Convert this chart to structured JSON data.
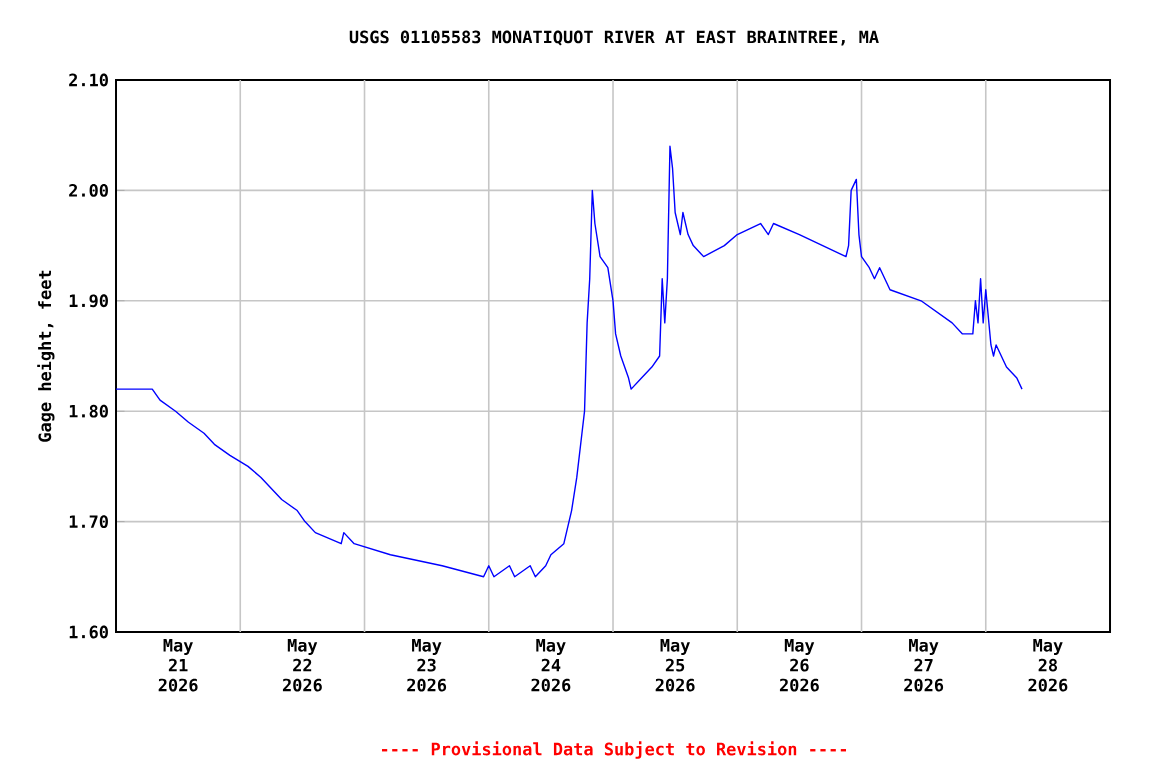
{
  "chart_data": {
    "type": "line",
    "title": "USGS 01105583 MONATIQUOT RIVER AT EAST BRAINTREE, MA",
    "ylabel": "Gage height, feet",
    "annotations": [
      "---- Provisional Data Subject to Revision ----"
    ],
    "x": [
      "2026-05-21T00:00",
      "2026-05-21T07:00",
      "2026-05-21T08:30",
      "2026-05-21T11:30",
      "2026-05-21T14:00",
      "2026-05-21T17:00",
      "2026-05-21T19:00",
      "2026-05-21T22:00",
      "2026-05-22T01:30",
      "2026-05-22T04:00",
      "2026-05-22T06:00",
      "2026-05-22T08:00",
      "2026-05-22T11:00",
      "2026-05-22T12:30",
      "2026-05-22T14:30",
      "2026-05-22T19:30",
      "2026-05-22T20:00",
      "2026-05-22T22:00",
      "2026-05-23T05:00",
      "2026-05-23T15:00",
      "2026-05-23T23:00",
      "2026-05-24T00:00",
      "2026-05-24T01:00",
      "2026-05-24T04:00",
      "2026-05-24T05:00",
      "2026-05-24T08:00",
      "2026-05-24T09:00",
      "2026-05-24T11:00",
      "2026-05-24T12:00",
      "2026-05-24T14:30",
      "2026-05-24T16:00",
      "2026-05-24T17:00",
      "2026-05-24T18:00",
      "2026-05-24T18:30",
      "2026-05-24T19:00",
      "2026-05-24T19:30",
      "2026-05-24T20:00",
      "2026-05-24T20:30",
      "2026-05-24T21:30",
      "2026-05-24T23:00",
      "2026-05-25T00:00",
      "2026-05-25T00:30",
      "2026-05-25T01:30",
      "2026-05-25T03:00",
      "2026-05-25T03:30",
      "2026-05-25T05:30",
      "2026-05-25T07:30",
      "2026-05-25T09:00",
      "2026-05-25T09:30",
      "2026-05-25T10:00",
      "2026-05-25T10:30",
      "2026-05-25T11:00",
      "2026-05-25T11:30",
      "2026-05-25T12:00",
      "2026-05-25T13:00",
      "2026-05-25T13:30",
      "2026-05-25T14:30",
      "2026-05-25T15:30",
      "2026-05-25T17:30",
      "2026-05-25T21:30",
      "2026-05-26T00:00",
      "2026-05-26T04:30",
      "2026-05-26T06:00",
      "2026-05-26T07:00",
      "2026-05-26T12:00",
      "2026-05-26T16:30",
      "2026-05-26T21:00",
      "2026-05-26T21:30",
      "2026-05-26T22:00",
      "2026-05-26T23:00",
      "2026-05-26T23:30",
      "2026-05-27T00:00",
      "2026-05-27T01:30",
      "2026-05-27T02:30",
      "2026-05-27T03:30",
      "2026-05-27T04:30",
      "2026-05-27T05:30",
      "2026-05-27T11:30",
      "2026-05-27T14:30",
      "2026-05-27T17:30",
      "2026-05-27T19:30",
      "2026-05-27T21:30",
      "2026-05-27T22:00",
      "2026-05-27T22:30",
      "2026-05-27T23:00",
      "2026-05-27T23:30",
      "2026-05-28T00:00",
      "2026-05-28T01:00",
      "2026-05-28T01:30",
      "2026-05-28T02:00",
      "2026-05-28T03:00",
      "2026-05-28T04:00",
      "2026-05-28T06:00",
      "2026-05-28T07:00"
    ],
    "series": [
      {
        "color": "#0000ff",
        "values": [
          1.82,
          1.82,
          1.81,
          1.8,
          1.79,
          1.78,
          1.77,
          1.76,
          1.75,
          1.74,
          1.73,
          1.72,
          1.71,
          1.7,
          1.69,
          1.68,
          1.69,
          1.68,
          1.67,
          1.66,
          1.65,
          1.66,
          1.65,
          1.66,
          1.65,
          1.66,
          1.65,
          1.66,
          1.67,
          1.68,
          1.71,
          1.74,
          1.78,
          1.8,
          1.88,
          1.92,
          2.0,
          1.97,
          1.94,
          1.93,
          1.9,
          1.87,
          1.85,
          1.83,
          1.82,
          1.83,
          1.84,
          1.85,
          1.92,
          1.88,
          1.92,
          2.04,
          2.02,
          1.98,
          1.96,
          1.98,
          1.96,
          1.95,
          1.94,
          1.95,
          1.96,
          1.97,
          1.96,
          1.97,
          1.96,
          1.95,
          1.94,
          1.95,
          2.0,
          2.01,
          1.96,
          1.94,
          1.93,
          1.92,
          1.93,
          1.92,
          1.91,
          1.9,
          1.89,
          1.88,
          1.87,
          1.87,
          1.9,
          1.88,
          1.92,
          1.88,
          1.91,
          1.86,
          1.85,
          1.86,
          1.85,
          1.84,
          1.83,
          1.82
        ]
      }
    ],
    "xlim": [
      "2026-05-21T00:00",
      "2026-05-29T00:00"
    ],
    "xticks": [
      {
        "value": "2026-05-22T00:00",
        "label": null
      },
      {
        "value": "2026-05-23T00:00",
        "label": null
      },
      {
        "value": "2026-05-24T00:00",
        "label": null
      },
      {
        "value": "2026-05-25T00:00",
        "label": null
      },
      {
        "value": "2026-05-26T00:00",
        "label": null
      },
      {
        "value": "2026-05-27T00:00",
        "label": null
      },
      {
        "value": "2026-05-28T00:00",
        "label": null
      },
      {
        "value": "2026-05-21T12:00",
        "label": "May 21 2026"
      },
      {
        "value": "2026-05-22T12:00",
        "label": "May 22 2026"
      },
      {
        "value": "2026-05-23T12:00",
        "label": "May 23 2026"
      },
      {
        "value": "2026-05-24T12:00",
        "label": "May 24 2026"
      },
      {
        "value": "2026-05-25T12:00",
        "label": "May 25 2026"
      },
      {
        "value": "2026-05-26T12:00",
        "label": "May 26 2026"
      },
      {
        "value": "2026-05-27T12:00",
        "label": "May 27 2026"
      },
      {
        "value": "2026-05-28T12:00",
        "label": "May 28 2026"
      }
    ],
    "ylim": [
      1.6,
      2.1
    ],
    "yticks": [
      {
        "value": 1.6,
        "label": "1.60"
      },
      {
        "value": 1.7,
        "label": "1.70"
      },
      {
        "value": 1.8,
        "label": "1.80"
      },
      {
        "value": 1.9,
        "label": "1.90"
      },
      {
        "value": 2.0,
        "label": "2.00"
      },
      {
        "value": 2.1,
        "label": "2.10"
      }
    ],
    "grid": true,
    "marker": "none",
    "line_style": "solid"
  }
}
